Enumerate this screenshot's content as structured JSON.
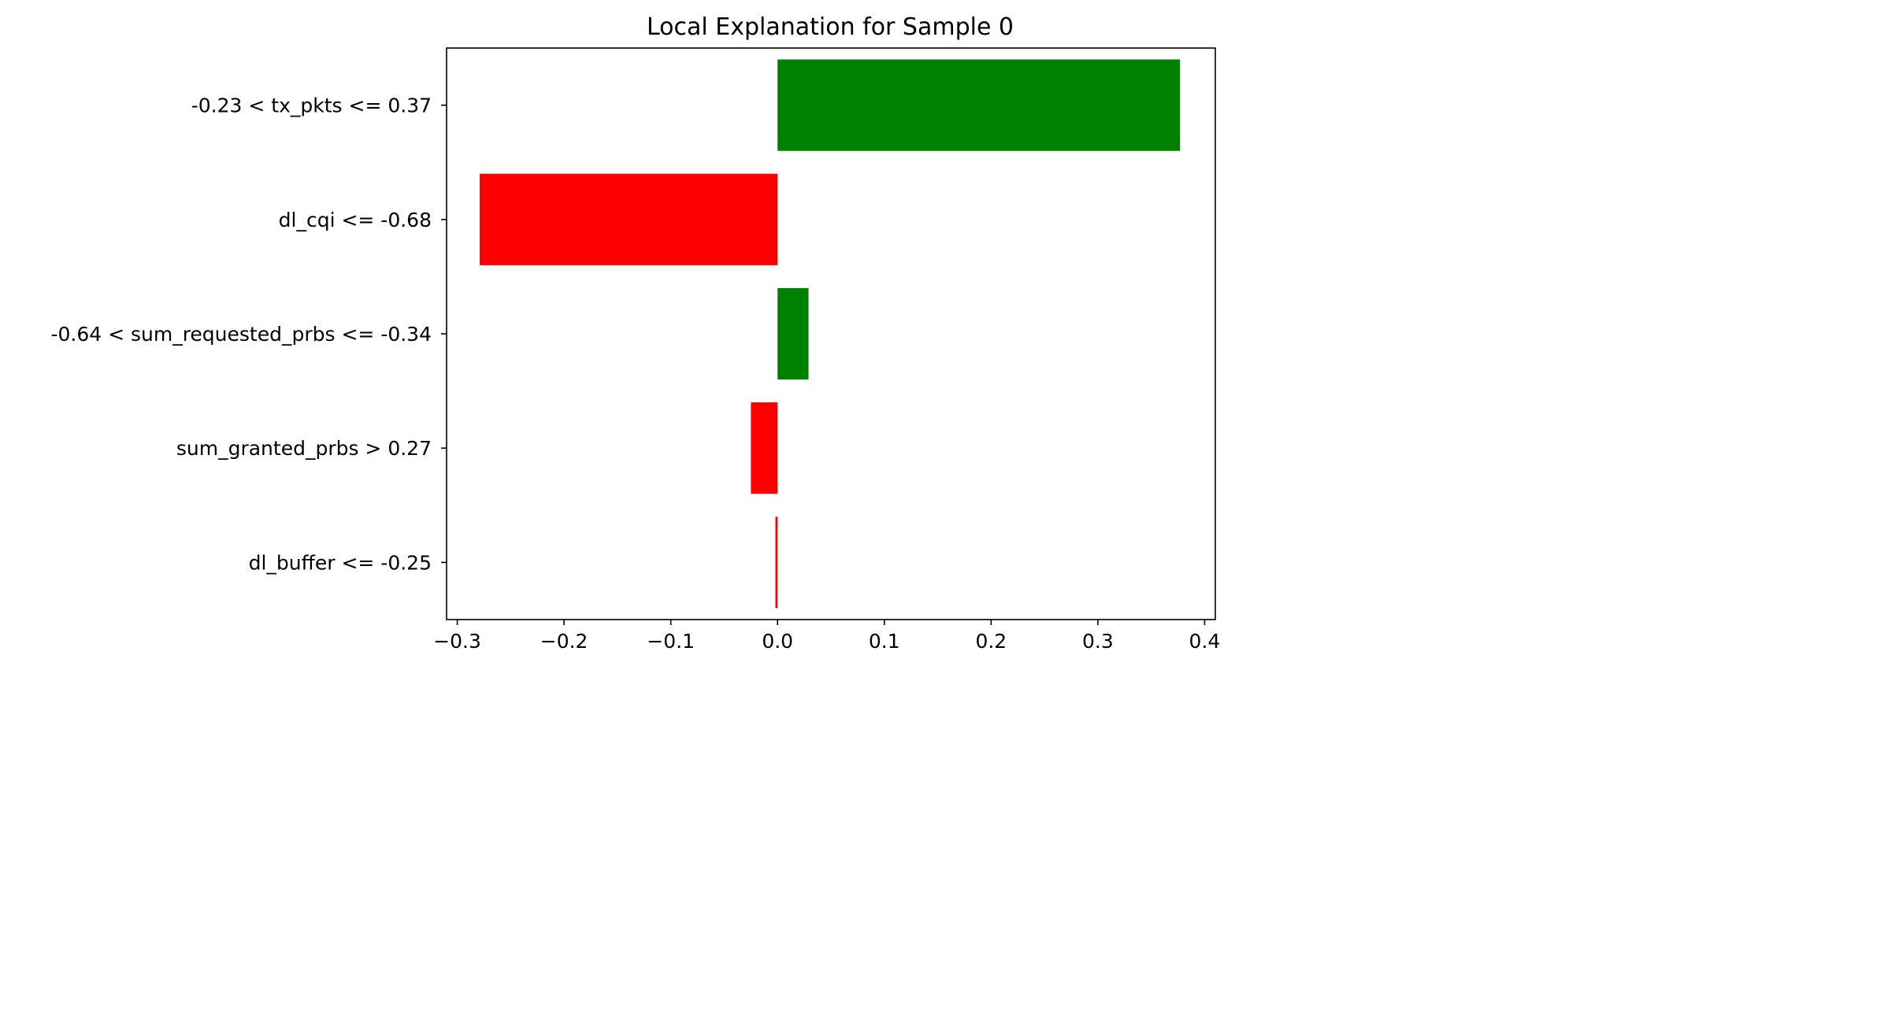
{
  "chart_data": {
    "type": "bar",
    "orientation": "horizontal",
    "title": "Local Explanation for Sample 0",
    "xlabel": "",
    "ylabel": "",
    "xlim": [
      -0.31,
      0.41
    ],
    "x_ticks": [
      -0.3,
      -0.2,
      -0.1,
      0.0,
      0.1,
      0.2,
      0.3,
      0.4
    ],
    "x_tick_labels": [
      "−0.3",
      "−0.2",
      "−0.1",
      "0.0",
      "0.1",
      "0.2",
      "0.3",
      "0.4"
    ],
    "categories": [
      "-0.23 < tx_pkts <= 0.37",
      "dl_cqi <= -0.68",
      "-0.64 < sum_requested_prbs <= -0.34",
      "sum_granted_prbs > 0.27",
      "dl_buffer <= -0.25"
    ],
    "values": [
      0.377,
      -0.279,
      0.029,
      -0.025,
      -0.002
    ],
    "colors": {
      "positive": "#008000",
      "negative": "#ff0000"
    },
    "grid": false,
    "legend": "none"
  }
}
